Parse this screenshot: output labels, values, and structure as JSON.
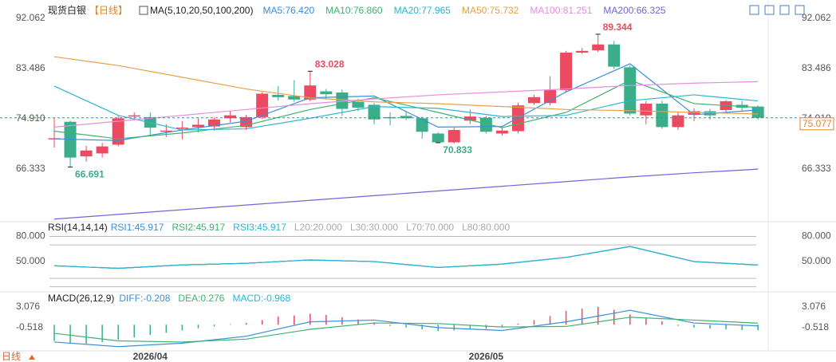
{
  "toolbar": {
    "period": "日线"
  },
  "chart_data": [
    {
      "type": "candlestick",
      "title": "现货白银",
      "subtitle": "【日线】",
      "indicator": "MA(5,10,20,50,100,200)",
      "categories": [
        null,
        null,
        null,
        null,
        null,
        null,
        "2026/04",
        null,
        null,
        null,
        null,
        null,
        null,
        null,
        null,
        null,
        null,
        null,
        null,
        null,
        null,
        null,
        null,
        null,
        null,
        null,
        null,
        "2026/05",
        null,
        null,
        null,
        null,
        null,
        null,
        null,
        null,
        null,
        null,
        null,
        null,
        null,
        null,
        null,
        null,
        null
      ],
      "open": [
        71.4,
        74.4,
        68.5,
        69.0,
        70.5,
        75.3,
        75.2,
        72.7,
        73.2,
        73.5,
        73.6,
        75.0,
        73.5,
        75.2,
        79.0,
        78.8,
        78.2,
        79.6,
        79.4,
        77.8,
        77.3,
        75.2,
        75.4,
        75.0,
        72.4,
        70.9,
        74.6,
        75.1,
        72.4,
        72.8,
        77.6,
        77.6,
        79.8,
        86.2,
        86.6,
        87.6,
        83.7,
        75.5,
        77.5,
        73.5,
        75.6,
        76.2,
        76.4,
        77.3,
        77.0
      ],
      "high": [
        75.0,
        74.6,
        70.3,
        70.8,
        75.4,
        76.0,
        76.0,
        74.0,
        74.5,
        75.0,
        75.1,
        76.2,
        75.6,
        79.4,
        80.5,
        81.5,
        83.028,
        80.0,
        79.9,
        78.3,
        77.6,
        76.0,
        76.2,
        75.3,
        72.6,
        73.4,
        76.5,
        75.4,
        73.5,
        77.7,
        79.0,
        82.2,
        86.5,
        87.0,
        89.344,
        88.2,
        84.0,
        78.0,
        78.0,
        76.0,
        76.7,
        76.6,
        78.1,
        78.0,
        77.2
      ],
      "low": [
        70.0,
        66.691,
        67.6,
        68.3,
        70.2,
        74.8,
        72.2,
        71.8,
        71.4,
        72.6,
        72.9,
        74.3,
        73.0,
        74.9,
        78.0,
        77.8,
        77.9,
        78.2,
        75.4,
        76.2,
        74.0,
        73.8,
        74.7,
        71.5,
        70.833,
        70.7,
        74.0,
        72.4,
        72.0,
        72.4,
        77.3,
        77.2,
        79.4,
        86.0,
        86.3,
        83.4,
        75.5,
        74.0,
        73.2,
        73.0,
        74.5,
        74.8,
        76.0,
        76.2,
        74.8
      ],
      "close": [
        71.6,
        68.3,
        69.5,
        70.2,
        75.0,
        75.5,
        73.4,
        72.9,
        73.4,
        73.9,
        74.8,
        75.5,
        75.2,
        79.2,
        78.6,
        78.2,
        80.6,
        79.1,
        76.6,
        76.8,
        74.8,
        75.0,
        75.0,
        72.7,
        70.9,
        73.0,
        75.3,
        72.7,
        72.9,
        77.2,
        78.6,
        79.8,
        86.2,
        86.5,
        87.6,
        83.8,
        75.8,
        77.5,
        73.5,
        75.5,
        76.2,
        75.5,
        77.9,
        76.8,
        75.077
      ],
      "high_labels": [
        null,
        null,
        null,
        null,
        null,
        null,
        null,
        null,
        null,
        null,
        null,
        null,
        null,
        null,
        null,
        null,
        "83.028",
        null,
        null,
        null,
        null,
        null,
        null,
        null,
        null,
        null,
        null,
        null,
        null,
        null,
        null,
        null,
        null,
        null,
        "89.344",
        null,
        null,
        null,
        null,
        null,
        null,
        null,
        null,
        null,
        null
      ],
      "low_labels": [
        null,
        "66.691",
        null,
        null,
        null,
        null,
        null,
        null,
        null,
        null,
        null,
        null,
        null,
        null,
        null,
        null,
        null,
        null,
        null,
        null,
        null,
        null,
        null,
        null,
        "70.833",
        null,
        null,
        null,
        null,
        null,
        null,
        null,
        null,
        null,
        null,
        null,
        null,
        null,
        null,
        null,
        null,
        null,
        null,
        null,
        null
      ],
      "up_color": "#ec4a60",
      "down_color": "#3aae8a",
      "ylim": [
        57.77,
        93.14
      ],
      "yticks": [
        66.333,
        {
          "value": 74.91,
          "label": "74.910"
        },
        83.486,
        92.062
      ],
      "last_price": 75.077,
      "last_price_color": "#e0862d",
      "lines": {
        "x": [
          0,
          4,
          8,
          12,
          16,
          20,
          24,
          28,
          32,
          36,
          40,
          44
        ],
        "series": [
          {
            "name": "MA5:76.420",
            "color": "#3b8fd9",
            "values": [
              71.5,
              71.2,
              73.0,
              74.5,
              78.5,
              78.8,
              73.5,
              73.6,
              79.5,
              84.3,
              75.6,
              76.42
            ]
          },
          {
            "name": "MA10:76.860",
            "color": "#3cb371",
            "values": [
              72.8,
              71.5,
              72.5,
              73.8,
              76.5,
              78.5,
              76.0,
              73.4,
              76.0,
              81.5,
              77.5,
              76.86
            ]
          },
          {
            "name": "MA20:77.965",
            "color": "#2bb5d4",
            "values": [
              80.5,
              75.5,
              73.0,
              73.2,
              75.0,
              77.0,
              76.7,
              75.3,
              75.5,
              78.0,
              79.0,
              77.965
            ]
          },
          {
            "name": "MA50:75.732",
            "color": "#e8a04a",
            "values": [
              85.5,
              84.0,
              82.0,
              80.0,
              78.5,
              77.8,
              77.5,
              77.0,
              76.5,
              76.3,
              76.0,
              75.732
            ]
          },
          {
            "name": "MA100:81.251",
            "color": "#e58ee0",
            "values": [
              73.5,
              74.5,
              75.5,
              76.5,
              77.5,
              78.3,
              79.0,
              79.5,
              80.0,
              80.6,
              81.0,
              81.251
            ]
          },
          {
            "name": "MA200:66.325",
            "color": "#7b5fd6",
            "values": [
              57.8,
              58.6,
              59.4,
              60.2,
              61.0,
              61.8,
              62.6,
              63.4,
              64.2,
              65.0,
              65.7,
              66.325
            ]
          }
        ]
      }
    },
    {
      "type": "line",
      "title": "RSI(14,14,14)",
      "x": [
        0,
        4,
        8,
        12,
        16,
        20,
        24,
        28,
        32,
        36,
        40,
        44
      ],
      "series": [
        {
          "name": "RSI1:45.917",
          "color": "#3b8fd9",
          "values": [
            45,
            42,
            46,
            48,
            52,
            50,
            43,
            47,
            55,
            68,
            50,
            45.917
          ]
        },
        {
          "name": "RSI2:45.917",
          "color": "#3cb371",
          "values": [
            45,
            42,
            46,
            48,
            52,
            50,
            43,
            47,
            55,
            68,
            50,
            45.917
          ]
        },
        {
          "name": "RSI3:45.917",
          "color": "#2bb5d4",
          "values": [
            45,
            42,
            46,
            48,
            52,
            50,
            43,
            47,
            55,
            68,
            50,
            45.917
          ]
        }
      ],
      "levels": [
        {
          "value": 20,
          "label": "L20:20.000"
        },
        {
          "value": 30,
          "label": "L30:30.000"
        },
        {
          "value": 70,
          "label": "L70:70.000"
        },
        {
          "value": 80,
          "label": "L80:80.000"
        }
      ],
      "ylim": [
        12,
        91
      ],
      "yticks": [
        {
          "value": 80,
          "label": "80.000"
        },
        {
          "value": 50,
          "label": "50.000"
        }
      ]
    },
    {
      "type": "macd",
      "title": "MACD(26,12,9)",
      "x": [
        0,
        4,
        8,
        12,
        16,
        20,
        24,
        28,
        32,
        36,
        40,
        44
      ],
      "series": [
        {
          "name": "DIFF:-0.208",
          "color": "#3b8fd9",
          "values": [
            -3.0,
            -3.8,
            -3.2,
            -2.0,
            0.5,
            0.8,
            -0.5,
            -1.0,
            0.5,
            2.5,
            0.3,
            -0.208
          ]
        },
        {
          "name": "DEA:0.276",
          "color": "#3cb371",
          "values": [
            -1.5,
            -2.8,
            -3.0,
            -2.5,
            -0.8,
            0.3,
            0.2,
            -0.4,
            -0.3,
            1.3,
            0.8,
            0.276
          ]
        }
      ],
      "histogram": {
        "name": "MACD:-0.968",
        "color": "#2bb5d4",
        "up_color": "#ec4a60",
        "down_color": "#3aae8a",
        "values": [
          -2.8,
          -3.2,
          -3.3,
          -3.0,
          -2.6,
          -2.2,
          -1.8,
          -1.4,
          -1.0,
          -0.6,
          -0.3,
          0.1,
          0.3,
          0.8,
          1.4,
          1.6,
          1.9,
          1.7,
          1.3,
          0.9,
          0.4,
          -0.2,
          -0.5,
          -0.8,
          -1.1,
          -1.0,
          -0.8,
          -0.7,
          -0.4,
          0.2,
          0.8,
          1.5,
          2.4,
          2.8,
          3.1,
          2.6,
          1.8,
          1.2,
          0.6,
          -0.2,
          -0.5,
          -0.7,
          -0.8,
          -0.9,
          -0.968
        ]
      },
      "ylim": [
        -4.53,
        5.15
      ],
      "yticks": [
        3.076,
        -0.518
      ]
    }
  ]
}
